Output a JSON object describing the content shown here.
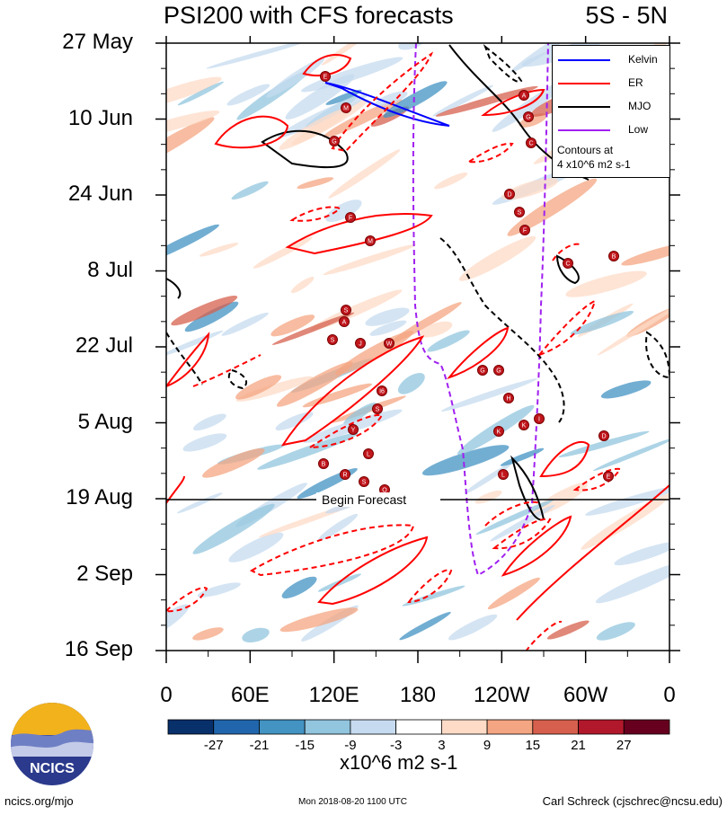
{
  "title": "PSI200 with CFS forecasts",
  "region": "5S - 5N",
  "chart_data": {
    "type": "heatmap",
    "title": "PSI200 with CFS forecasts",
    "subtitle": "5S - 5N",
    "x_ticks": [
      "0",
      "60E",
      "120E",
      "180",
      "120W",
      "60W",
      "0"
    ],
    "y_ticks": [
      "27 May",
      "10 Jun",
      "24 Jun",
      "8 Jul",
      "22 Jul",
      "5 Aug",
      "19 Aug",
      "2 Sep",
      "16 Sep"
    ],
    "forecast_start": "19 Aug",
    "forecast_label": "Begin Forecast",
    "colorbar": {
      "colors": [
        "#08306b",
        "#2166ac",
        "#4393c3",
        "#92c5de",
        "#c6dbef",
        "#ffffff",
        "#fddbc7",
        "#f4a582",
        "#d6604d",
        "#b2182b",
        "#67001f"
      ],
      "tick_labels": [
        "-27",
        "-21",
        "-15",
        "-9",
        "-3",
        "3",
        "9",
        "15",
        "21",
        "27"
      ],
      "units": "x10^6 m2 s-1"
    },
    "legend": [
      {
        "name": "Kelvin",
        "color": "#0000ff"
      },
      {
        "name": "ER",
        "color": "#ff0000"
      },
      {
        "name": "MJO",
        "color": "#000000"
      },
      {
        "name": "Low",
        "color": "#a020f0"
      }
    ],
    "contour_note": [
      "Contours at",
      "4 x10^6 m2 s-1"
    ],
    "storms": [
      "E",
      "M",
      "G",
      "F",
      "M",
      "S",
      "A",
      "S",
      "J",
      "W",
      "I6",
      "S",
      "Y",
      "L",
      "B",
      "R",
      "S",
      "O",
      "A",
      "G",
      "C",
      "D",
      "S",
      "F",
      "C",
      "B",
      "G",
      "G",
      "H",
      "K",
      "K",
      "I",
      "D",
      "E",
      "L"
    ]
  },
  "footer": {
    "left": "ncics.org/mjo",
    "center": "Mon 2018-08-20 1100 UTC",
    "right": "Carl Schreck (cjschrec@ncsu.edu)"
  },
  "logo": {
    "text": "NCICS"
  }
}
